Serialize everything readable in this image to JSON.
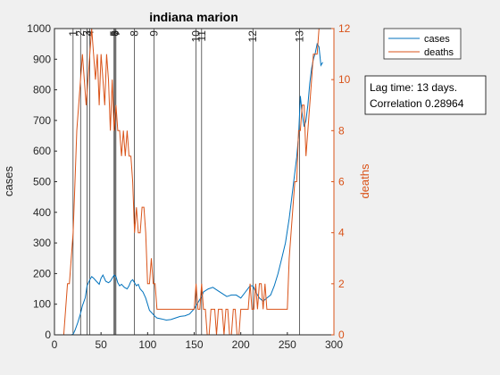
{
  "chart_data": {
    "type": "line",
    "title": "indiana marion",
    "xlabel": "",
    "ylabel": "cases",
    "ylabel_right": "deaths",
    "xlim": [
      0,
      300
    ],
    "ylim": [
      0,
      1000
    ],
    "ylim_right": [
      0,
      12
    ],
    "x_ticks": [
      0,
      50,
      100,
      150,
      200,
      250,
      300
    ],
    "y_ticks": [
      0,
      100,
      200,
      300,
      400,
      500,
      600,
      700,
      800,
      900,
      1000
    ],
    "y_ticks_right": [
      0,
      2,
      4,
      6,
      8,
      10,
      12
    ],
    "grid": false,
    "legend_position": "top-right, outside axes",
    "colors": {
      "cases": "#0072bd",
      "deaths": "#d95319",
      "event_lines": "#000000"
    },
    "events": [
      {
        "label": "1",
        "x": 20
      },
      {
        "label": "2",
        "x": 28
      },
      {
        "label": "3",
        "x": 35
      },
      {
        "label": "4",
        "x": 38
      },
      {
        "label": "5",
        "x": 64
      },
      {
        "label": "6",
        "x": 65
      },
      {
        "label": "7",
        "x": 66
      },
      {
        "label": "8",
        "x": 86
      },
      {
        "label": "9",
        "x": 107
      },
      {
        "label": "10",
        "x": 152
      },
      {
        "label": "11",
        "x": 158
      },
      {
        "label": "12",
        "x": 213
      },
      {
        "label": "13",
        "x": 263
      }
    ],
    "series": [
      {
        "name": "cases",
        "axis": "left",
        "x": [
          10,
          15,
          18,
          20,
          22,
          25,
          28,
          30,
          33,
          35,
          38,
          40,
          42,
          45,
          48,
          50,
          52,
          55,
          58,
          60,
          62,
          64,
          66,
          68,
          70,
          72,
          75,
          78,
          80,
          82,
          84,
          86,
          88,
          90,
          92,
          95,
          98,
          100,
          102,
          105,
          108,
          110,
          115,
          120,
          125,
          130,
          135,
          140,
          145,
          150,
          152,
          155,
          158,
          160,
          165,
          170,
          175,
          180,
          185,
          190,
          195,
          200,
          205,
          210,
          213,
          216,
          220,
          224,
          228,
          232,
          236,
          240,
          244,
          248,
          252,
          256,
          260,
          262,
          264,
          266,
          268,
          270,
          272,
          274,
          276,
          278,
          280,
          282,
          284,
          286,
          288
        ],
        "y": [
          0,
          0,
          0,
          2,
          15,
          40,
          70,
          95,
          120,
          160,
          180,
          190,
          185,
          175,
          165,
          185,
          195,
          175,
          170,
          175,
          185,
          195,
          190,
          170,
          160,
          165,
          155,
          150,
          160,
          175,
          180,
          170,
          160,
          165,
          150,
          140,
          120,
          100,
          80,
          70,
          60,
          55,
          52,
          48,
          50,
          55,
          60,
          62,
          68,
          85,
          95,
          110,
          125,
          140,
          150,
          155,
          145,
          135,
          125,
          130,
          130,
          120,
          140,
          160,
          160,
          140,
          120,
          110,
          120,
          130,
          160,
          200,
          250,
          300,
          380,
          480,
          580,
          650,
          780,
          720,
          680,
          700,
          750,
          820,
          870,
          900,
          920,
          950,
          940,
          880,
          890
        ]
      },
      {
        "name": "deaths",
        "axis": "right",
        "x": [
          10,
          12,
          14,
          16,
          18,
          20,
          22,
          24,
          26,
          28,
          30,
          32,
          34,
          36,
          38,
          40,
          42,
          44,
          46,
          48,
          50,
          52,
          54,
          56,
          58,
          60,
          62,
          64,
          66,
          68,
          70,
          72,
          74,
          76,
          78,
          80,
          82,
          84,
          86,
          88,
          90,
          92,
          94,
          96,
          98,
          100,
          102,
          104,
          106,
          108,
          110,
          130,
          150,
          152,
          154,
          156,
          158,
          160,
          162,
          164,
          166,
          168,
          170,
          172,
          174,
          176,
          178,
          180,
          182,
          184,
          186,
          188,
          190,
          192,
          194,
          196,
          198,
          200,
          202,
          204,
          206,
          208,
          210,
          212,
          214,
          216,
          218,
          220,
          222,
          224,
          226,
          228,
          230,
          240,
          250,
          252,
          254,
          256,
          258,
          260,
          262,
          264,
          266,
          268,
          270,
          272,
          274,
          276,
          278,
          280,
          282,
          284
        ],
        "y": [
          0,
          1,
          2,
          2,
          3,
          4,
          6,
          8,
          9,
          10,
          11,
          10,
          9,
          10,
          11,
          12,
          11,
          10,
          11,
          9,
          11,
          10,
          9,
          11,
          10,
          8,
          10,
          8,
          9,
          8,
          8,
          7,
          8,
          7,
          8,
          7,
          7,
          6,
          4,
          5,
          4,
          4,
          5,
          5,
          4,
          2,
          2,
          3,
          2,
          2,
          1,
          1,
          1,
          2,
          1,
          1,
          2,
          1,
          1,
          0,
          0,
          1,
          1,
          1,
          0,
          1,
          1,
          1,
          0,
          1,
          1,
          0,
          0,
          1,
          1,
          0,
          0,
          1,
          1,
          1,
          1,
          1,
          2,
          1,
          1,
          2,
          1,
          2,
          2,
          1,
          2,
          1,
          1,
          1,
          1,
          3,
          4,
          5,
          6,
          6,
          8,
          8,
          9,
          9,
          7,
          8,
          9,
          10,
          11,
          11,
          11,
          12
        ]
      }
    ],
    "annotation_lines": [
      "Lag time: 13 days.",
      "Correlation 0.28964"
    ]
  }
}
